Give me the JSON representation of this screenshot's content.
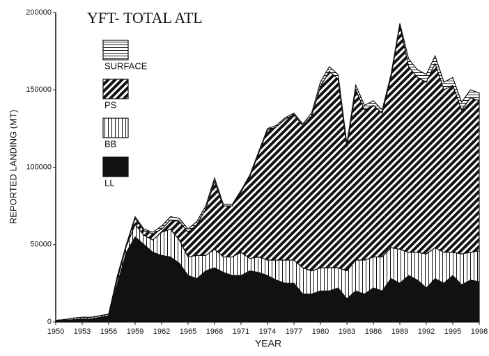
{
  "chart_data": {
    "type": "stacked_area",
    "title": "YFT- TOTAL ATL",
    "xlabel": "YEAR",
    "ylabel": "REPORTED LANDING (MT)",
    "x": [
      1950,
      1951,
      1952,
      1953,
      1954,
      1955,
      1956,
      1957,
      1958,
      1959,
      1960,
      1961,
      1962,
      1963,
      1964,
      1965,
      1966,
      1967,
      1968,
      1969,
      1970,
      1971,
      1972,
      1973,
      1974,
      1975,
      1976,
      1977,
      1978,
      1979,
      1980,
      1981,
      1982,
      1983,
      1984,
      1985,
      1986,
      1987,
      1988,
      1989,
      1990,
      1991,
      1992,
      1993,
      1994,
      1995,
      1996,
      1997,
      1998
    ],
    "xlim": [
      1950,
      1998
    ],
    "xticks": [
      1950,
      1953,
      1956,
      1959,
      1962,
      1965,
      1968,
      1971,
      1974,
      1977,
      1980,
      1983,
      1986,
      1989,
      1992,
      1995,
      1998
    ],
    "ylim": [
      0,
      200000
    ],
    "yticks": [
      0,
      50000,
      100000,
      150000,
      200000
    ],
    "series": [
      {
        "name": "LL",
        "color": "#111111",
        "pattern": "solid",
        "values": [
          500,
          1000,
          1500,
          2000,
          2000,
          3000,
          4000,
          25000,
          45000,
          55000,
          50000,
          45000,
          43000,
          42000,
          38000,
          30000,
          28000,
          33000,
          35000,
          32000,
          30000,
          30000,
          33000,
          32000,
          30000,
          27000,
          25000,
          25000,
          18000,
          18000,
          20000,
          20000,
          22000,
          15000,
          20000,
          18000,
          22000,
          20000,
          28000,
          25000,
          30000,
          27000,
          22000,
          28000,
          25000,
          30000,
          24000,
          27000,
          26000
        ]
      },
      {
        "name": "BB",
        "color": "#111111",
        "pattern": "vertical",
        "values": [
          500,
          500,
          1000,
          1000,
          1000,
          1000,
          1000,
          3000,
          4000,
          8000,
          6000,
          8000,
          15000,
          18000,
          15000,
          12000,
          15000,
          10000,
          12000,
          10000,
          12000,
          15000,
          8000,
          10000,
          10000,
          13000,
          15000,
          15000,
          17000,
          15000,
          15000,
          15000,
          13000,
          18000,
          20000,
          22000,
          20000,
          22000,
          20000,
          22000,
          15000,
          18000,
          22000,
          20000,
          20000,
          15000,
          20000,
          18000,
          20000
        ]
      },
      {
        "name": "PS",
        "color": "#111111",
        "pattern": "diagonal",
        "values": [
          0,
          0,
          0,
          0,
          0,
          0,
          0,
          2000,
          1000,
          4000,
          3000,
          4000,
          2000,
          6000,
          12000,
          16000,
          20000,
          30000,
          44000,
          33000,
          33000,
          39000,
          53000,
          67000,
          84000,
          86000,
          91000,
          94000,
          92000,
          100000,
          117000,
          127000,
          122000,
          80000,
          110000,
          97000,
          98000,
          93000,
          110000,
          145000,
          120000,
          113000,
          111000,
          119000,
          105000,
          108000,
          93000,
          100000,
          97000
        ]
      },
      {
        "name": "SURFACE",
        "color": "#111111",
        "pattern": "horizontal",
        "values": [
          0,
          0,
          0,
          0,
          0,
          0,
          0,
          0,
          0,
          1000,
          1000,
          1000,
          2000,
          2000,
          2000,
          2000,
          2000,
          2000,
          2000,
          1000,
          1000,
          1000,
          1000,
          1000,
          1000,
          1000,
          1000,
          1000,
          1000,
          2000,
          3000,
          3000,
          3000,
          2000,
          3000,
          3000,
          3000,
          2000,
          2000,
          1000,
          5000,
          5000,
          5000,
          5000,
          5000,
          5000,
          5000,
          5000,
          5000
        ]
      }
    ]
  }
}
